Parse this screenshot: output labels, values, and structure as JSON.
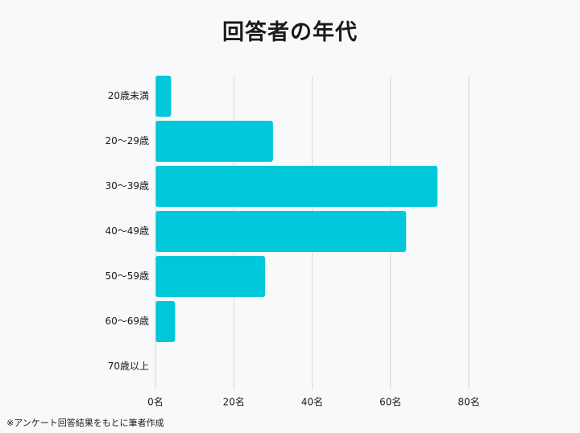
{
  "title": "回答者の年代",
  "note": "※アンケート回答結果をもとに筆者作成",
  "colors": {
    "bar": "#00c8da",
    "grid": "#d9d9d9",
    "text": "#1a1a1a",
    "background": "#f8f9fb"
  },
  "chart_data": {
    "type": "bar",
    "orientation": "horizontal",
    "title": "回答者の年代",
    "xlabel": "",
    "ylabel": "",
    "categories": [
      "20歳未満",
      "20～29歳",
      "30～39歳",
      "40～49歳",
      "50～59歳",
      "60～69歳",
      "70歳以上"
    ],
    "values": [
      4,
      30,
      72,
      64,
      28,
      5,
      0
    ],
    "xlim": [
      0,
      80
    ],
    "x_ticks": [
      {
        "value": 0,
        "label": "0名"
      },
      {
        "value": 20,
        "label": "20名"
      },
      {
        "value": 40,
        "label": "40名"
      },
      {
        "value": 60,
        "label": "60名"
      },
      {
        "value": 80,
        "label": "80名"
      }
    ],
    "grid": true,
    "legend": "none"
  }
}
